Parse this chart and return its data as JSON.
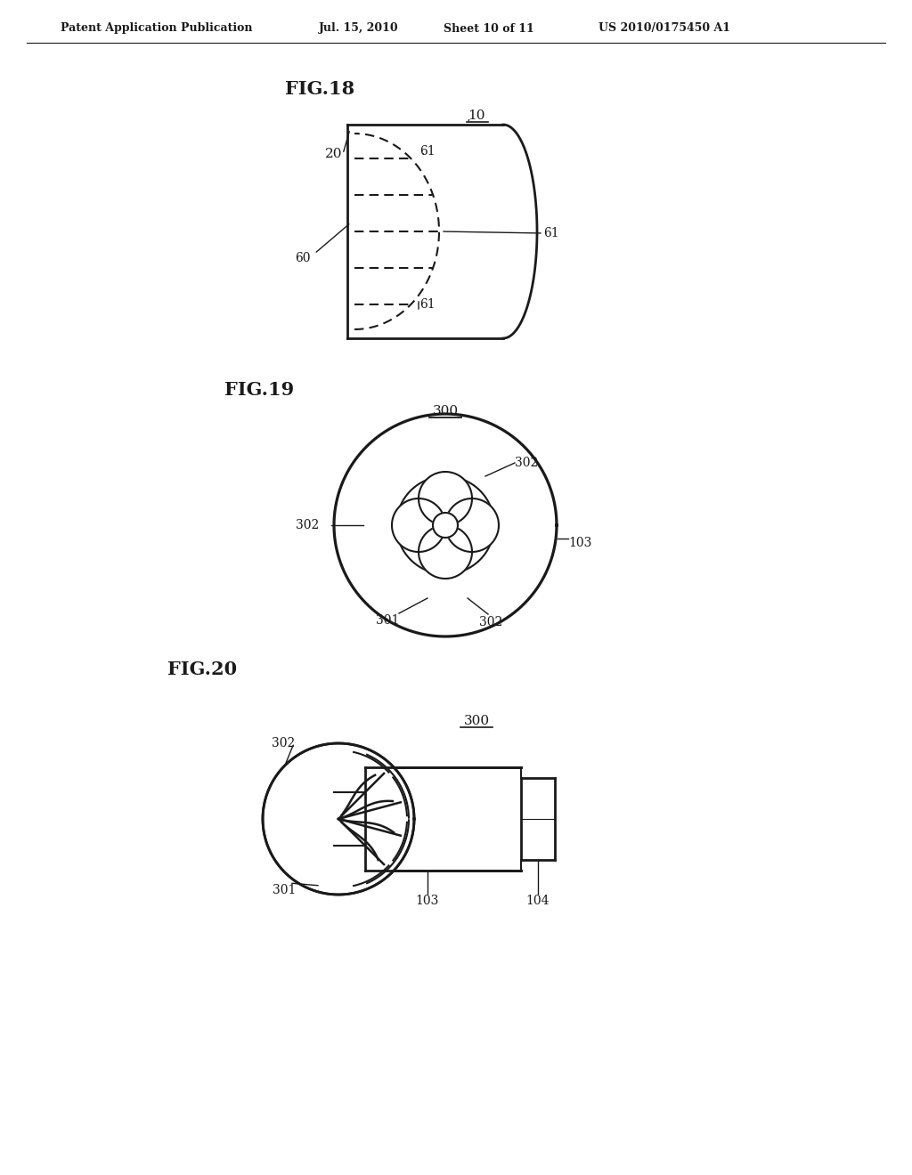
{
  "bg_color": "#ffffff",
  "header_text": "Patent Application Publication",
  "header_date": "Jul. 15, 2010",
  "header_sheet": "Sheet 10 of 11",
  "header_patent": "US 2010/0175450 A1",
  "fig18_title": "FIG.18",
  "fig19_title": "FIG.19",
  "fig20_title": "FIG.20",
  "line_color": "#1a1a1a",
  "line_width": 1.5
}
